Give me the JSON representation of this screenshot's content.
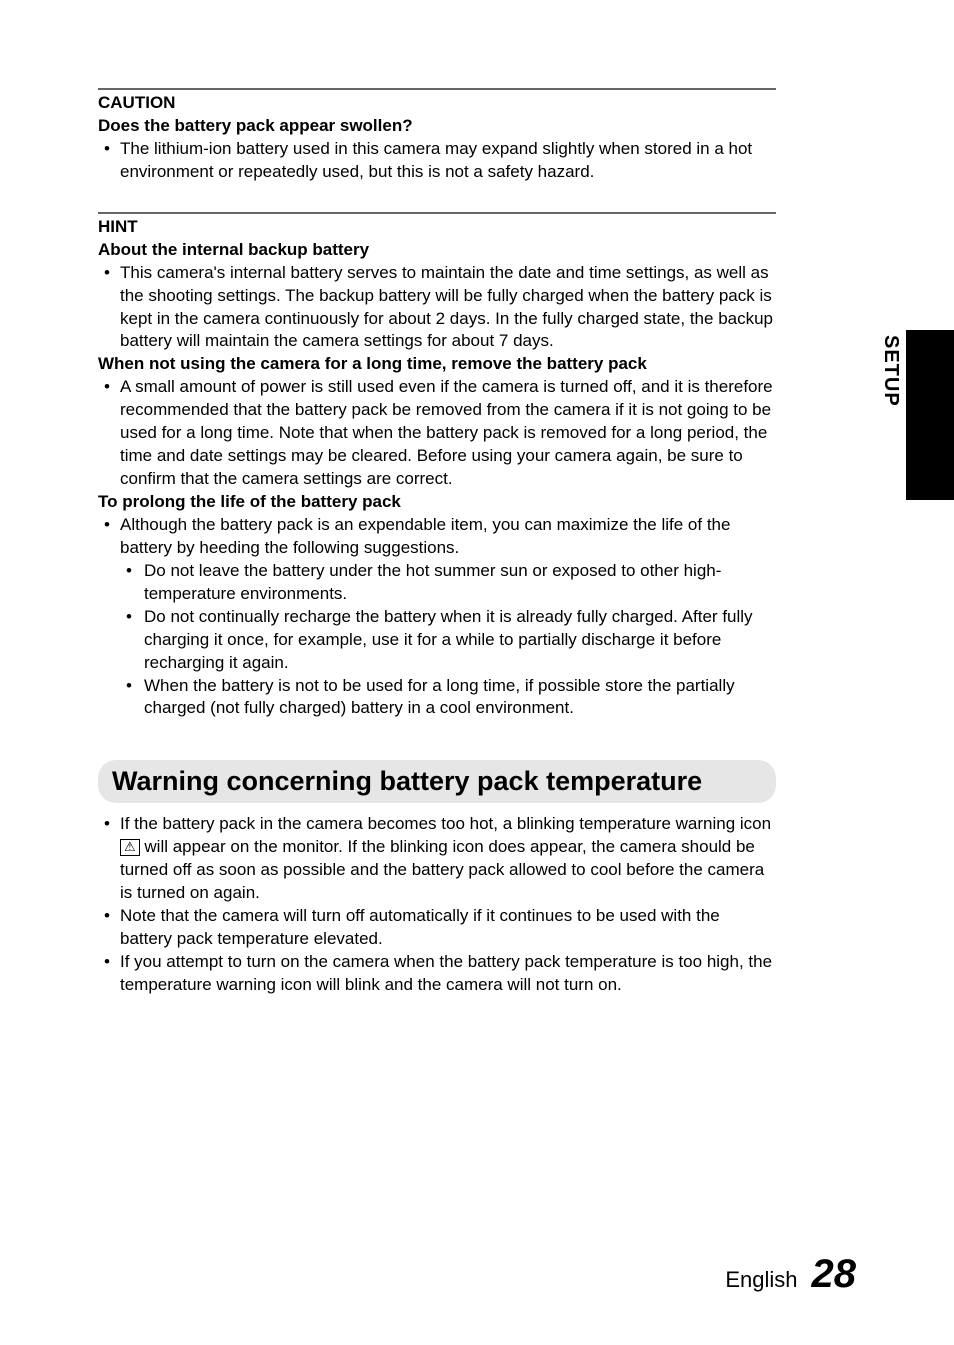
{
  "caution": {
    "label": "CAUTION",
    "q1": "Does the battery pack appear swollen?",
    "b1": "The lithium-ion battery used in this camera may expand slightly when stored in a hot environment or repeatedly used, but this is not a safety hazard."
  },
  "hint": {
    "label": "HINT",
    "h1": "About the internal backup battery",
    "b1": "This camera's internal battery serves to maintain the date and time settings, as well as the shooting settings. The backup battery will be fully charged when the battery pack is kept in the camera continuously for about 2 days. In the fully charged state, the backup battery will maintain the camera settings for about 7 days.",
    "h2": "When not using the camera for a long time, remove the battery pack",
    "b2": "A small amount of power is still used even if the camera is turned off, and it is therefore recommended that the battery pack be removed from the camera if it is not going to be used for a long time. Note that when the battery pack is removed for a long period, the time and date settings may be cleared. Before using your camera again, be sure to confirm that the camera settings are correct.",
    "h3": "To prolong the life of the battery pack",
    "b3": "Although the battery pack is an expendable item, you can maximize the life of the battery by heeding the following suggestions.",
    "s1": "Do not leave the battery under the hot summer sun or exposed to other high-temperature environments.",
    "s2": "Do not continually recharge the battery when it is already fully charged. After fully charging it once, for example, use it for a while to partially discharge it before recharging it again.",
    "s3": "When the battery is not to be used for a long time, if possible store the partially charged (not fully charged) battery in a cool environment."
  },
  "warning": {
    "heading": "Warning concerning battery pack temperature",
    "b1a": "If the battery pack in the camera becomes too hot, a blinking temperature warning icon ",
    "b1b": " will appear on the monitor. If the blinking icon does appear, the camera should be turned off as soon as possible and the battery pack allowed to cool before the camera is turned on again.",
    "b2": "Note that the camera will turn off automatically if it continues to be used with the battery pack temperature elevated.",
    "b3": "If you attempt to turn on the camera when the battery pack temperature is too high, the temperature warning icon will blink and the camera will not turn on."
  },
  "side": {
    "label": "SETUP"
  },
  "footer": {
    "lang": "English",
    "page": "28"
  },
  "icon": {
    "battery_warn": "⚠"
  }
}
